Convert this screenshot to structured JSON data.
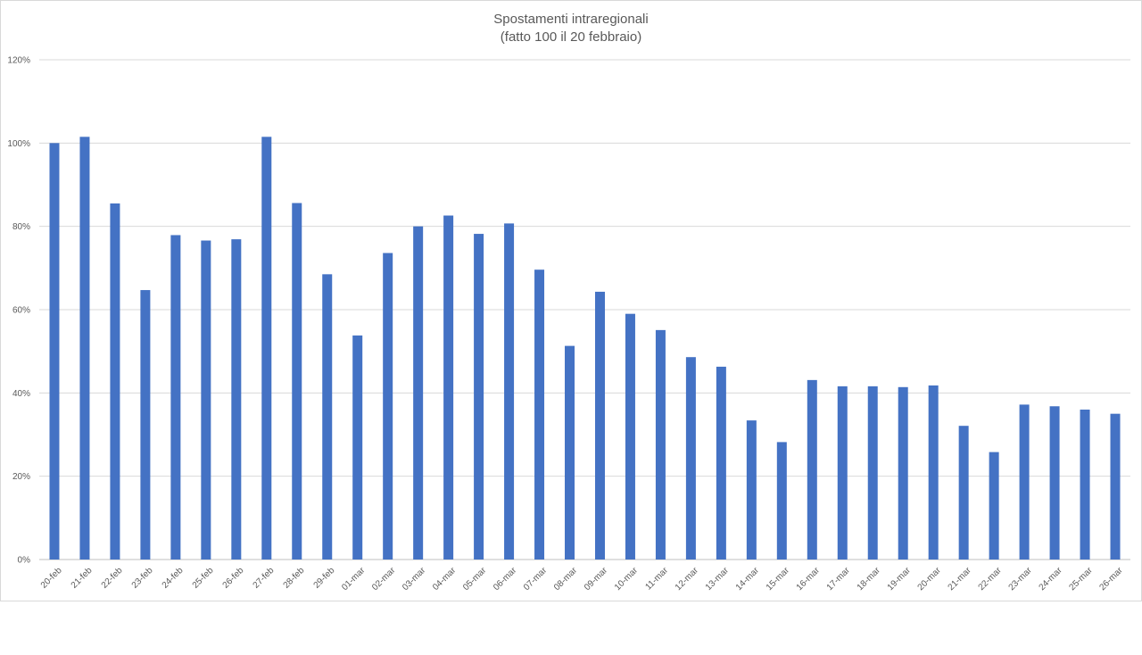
{
  "chart_data": {
    "type": "bar",
    "title": "Spostamenti intraregionali",
    "subtitle": "(fatto 100 il 20 febbraio)",
    "xlabel": "",
    "ylabel": "",
    "ylim": [
      0,
      120
    ],
    "yticks": [
      "0%",
      "20%",
      "40%",
      "60%",
      "80%",
      "100%",
      "120%"
    ],
    "grid": true,
    "bar_color": "#4472C4",
    "categories": [
      "20-feb",
      "21-feb",
      "22-feb",
      "23-feb",
      "24-feb",
      "25-feb",
      "26-feb",
      "27-feb",
      "28-feb",
      "29-feb",
      "01-mar",
      "02-mar",
      "03-mar",
      "04-mar",
      "05-mar",
      "06-mar",
      "07-mar",
      "08-mar",
      "09-mar",
      "10-mar",
      "11-mar",
      "12-mar",
      "13-mar",
      "14-mar",
      "15-mar",
      "16-mar",
      "17-mar",
      "18-mar",
      "19-mar",
      "20-mar",
      "21-mar",
      "22-mar",
      "23-mar",
      "24-mar",
      "25-mar",
      "26-mar"
    ],
    "values": [
      100,
      101.5,
      85.5,
      64.7,
      77.9,
      76.6,
      76.9,
      101.5,
      85.6,
      68.5,
      53.8,
      73.6,
      80.0,
      82.6,
      78.2,
      80.7,
      69.6,
      51.3,
      64.3,
      59.0,
      55.1,
      48.6,
      46.3,
      33.4,
      28.2,
      43.1,
      41.6,
      41.6,
      41.4,
      41.8,
      32.1,
      25.8,
      37.2,
      36.8,
      36.0,
      35.0
    ]
  }
}
